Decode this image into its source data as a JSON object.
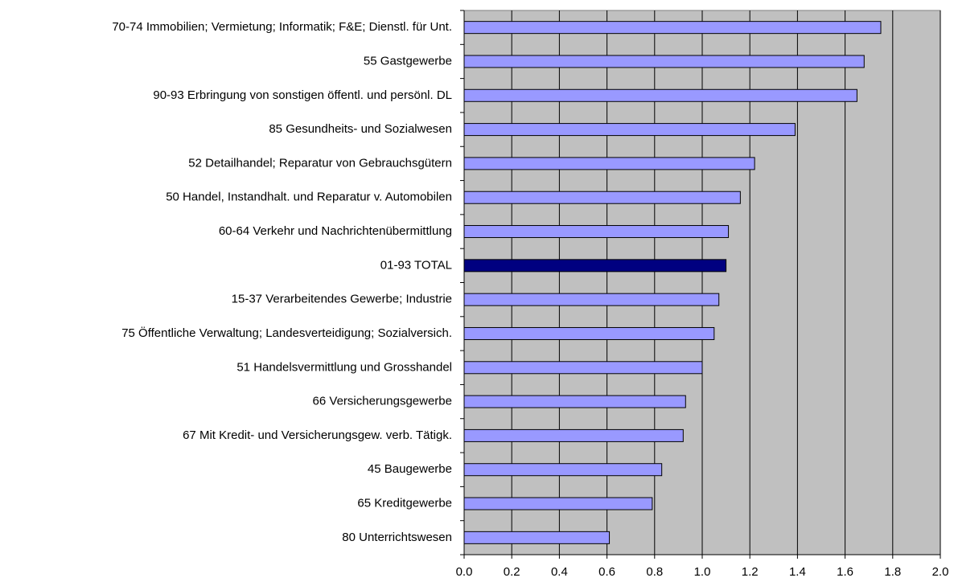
{
  "chart_data": {
    "type": "bar",
    "orientation": "horizontal",
    "categories": [
      "70-74 Immobilien; Vermietung; Informatik; F&E; Dienstl. für Unt.",
      "55 Gastgewerbe",
      "90-93 Erbringung von sonstigen öffentl. und persönl. DL",
      "85 Gesundheits- und Sozialwesen",
      "52 Detailhandel; Reparatur von Gebrauchsgütern",
      "50 Handel, Instandhalt. und Reparatur v. Automobilen",
      "60-64 Verkehr und Nachrichtenübermittlung",
      "01-93 TOTAL",
      "15-37 Verarbeitendes Gewerbe; Industrie",
      "75 Öffentliche Verwaltung; Landesverteidigung; Sozialversich.",
      "51 Handelsvermittlung und Grosshandel",
      "66 Versicherungsgewerbe",
      "67 Mit Kredit- und Versicherungsgew. verb. Tätigk.",
      "45 Baugewerbe",
      "65 Kreditgewerbe",
      "80 Unterrichtswesen"
    ],
    "values": [
      1.75,
      1.68,
      1.65,
      1.39,
      1.22,
      1.16,
      1.11,
      1.1,
      1.07,
      1.05,
      1.0,
      0.93,
      0.92,
      0.83,
      0.79,
      0.61
    ],
    "colors": [
      "#9999ff",
      "#9999ff",
      "#9999ff",
      "#9999ff",
      "#9999ff",
      "#9999ff",
      "#9999ff",
      "#000080",
      "#9999ff",
      "#9999ff",
      "#9999ff",
      "#9999ff",
      "#9999ff",
      "#9999ff",
      "#9999ff",
      "#9999ff"
    ],
    "xlim": [
      0,
      2
    ],
    "xticks": [
      {
        "value": 0,
        "label": "0.0"
      },
      {
        "value": 0.2,
        "label": "0.2"
      },
      {
        "value": 0.4,
        "label": "0.4"
      },
      {
        "value": 0.6,
        "label": "0.6"
      },
      {
        "value": 0.8,
        "label": "0.8"
      },
      {
        "value": 1,
        "label": "1.0"
      },
      {
        "value": 1.2,
        "label": "1.2"
      },
      {
        "value": 1.4,
        "label": "1.4"
      },
      {
        "value": 1.6,
        "label": "1.6"
      },
      {
        "value": 1.8,
        "label": "1.8"
      },
      {
        "value": 2,
        "label": "2.0"
      }
    ],
    "grid": true,
    "background": "#c0c0c0"
  }
}
